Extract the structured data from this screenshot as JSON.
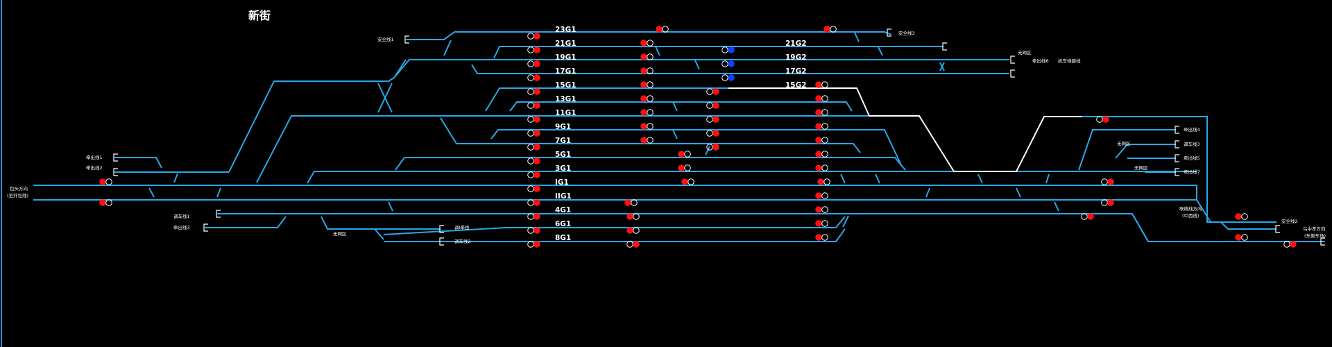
{
  "station_title": "新街",
  "colors": {
    "background": "#000000",
    "track": "#28A8E8",
    "route_locked": "#FFFFFF",
    "signal_red": "#FF1010",
    "signal_blue": "#1040FF",
    "signal_off": "#FFFFFF",
    "label": "#FFFFFF"
  },
  "track_labels": {
    "g23_1": "23G1",
    "g21_1": "21G1",
    "g19_1": "19G1",
    "g17_1": "17G1",
    "g15_1": "15G1",
    "g13_1": "13G1",
    "g11_1": "11G1",
    "g9_1": "9G1",
    "g7_1": "7G1",
    "g5_1": "5G1",
    "g3_1": "3G1",
    "gI_1": "IG1",
    "gII_1": "IIG1",
    "g4_1": "4G1",
    "g6_1": "6G1",
    "g8_1": "8G1",
    "g21_2": "21G2",
    "g19_2": "19G2",
    "g17_2": "17G2",
    "g15_2": "15G2"
  },
  "small_labels": {
    "safety_1": "安全线1",
    "safety_3": "安全线3",
    "safety_2": "安全线2",
    "pull_out_1": "牵出线1",
    "pull_out_2": "牵出线2",
    "pull_out_3": "牵出线3",
    "pull_out_4": "牵出线4",
    "pull_out_5": "牵出线5",
    "pull_out_6": "牵出线6",
    "pull_out_7": "牵出线7",
    "ii_return_line": "调车线2",
    "temp_dir": "乌中孝方向",
    "temp_dir_sub": "(东侧车场)",
    "baotou_dir": "包头方向",
    "baotou_dir_sub": "(至外包线)",
    "lianxian_dir": "联络线方向",
    "lianxian_dir_sub": "(中西线)",
    "no_label_a": "无网区",
    "no_label_b": "无网区",
    "no_label_c": "无网区",
    "no_label_d": "无网区",
    "locomotive_line": "机车待避线",
    "hump_line": "调车线1",
    "hump_line_2": "调车线3",
    "ii_line": "调I牵线",
    "shunt_line": "调车线2"
  }
}
